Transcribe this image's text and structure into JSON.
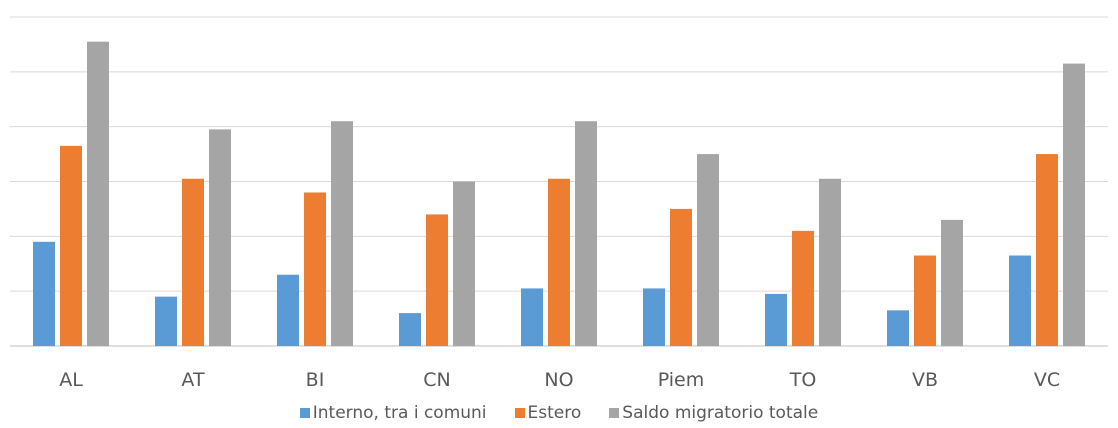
{
  "chart_data": {
    "type": "bar",
    "title": "",
    "xlabel": "",
    "ylabel": "",
    "categories": [
      "AL",
      "AT",
      "BI",
      "CN",
      "NO",
      "Piem",
      "TO",
      "VB",
      "VC"
    ],
    "series": [
      {
        "name": "Interno, tra i comuni",
        "color": "#5B9BD5",
        "values": [
          1.9,
          0.9,
          1.3,
          0.6,
          1.05,
          1.05,
          0.95,
          0.65,
          1.65
        ]
      },
      {
        "name": "Estero",
        "color": "#ED7D31",
        "values": [
          3.65,
          3.05,
          2.8,
          2.4,
          3.05,
          2.5,
          2.1,
          1.65,
          3.5
        ]
      },
      {
        "name": "Saldo migratorio totale",
        "color": "#A5A5A5",
        "values": [
          5.55,
          3.95,
          4.1,
          3.0,
          4.1,
          3.5,
          3.05,
          2.3,
          5.15
        ]
      }
    ],
    "ylim": [
      0,
      6
    ],
    "grid": true,
    "legend_position": "bottom"
  }
}
